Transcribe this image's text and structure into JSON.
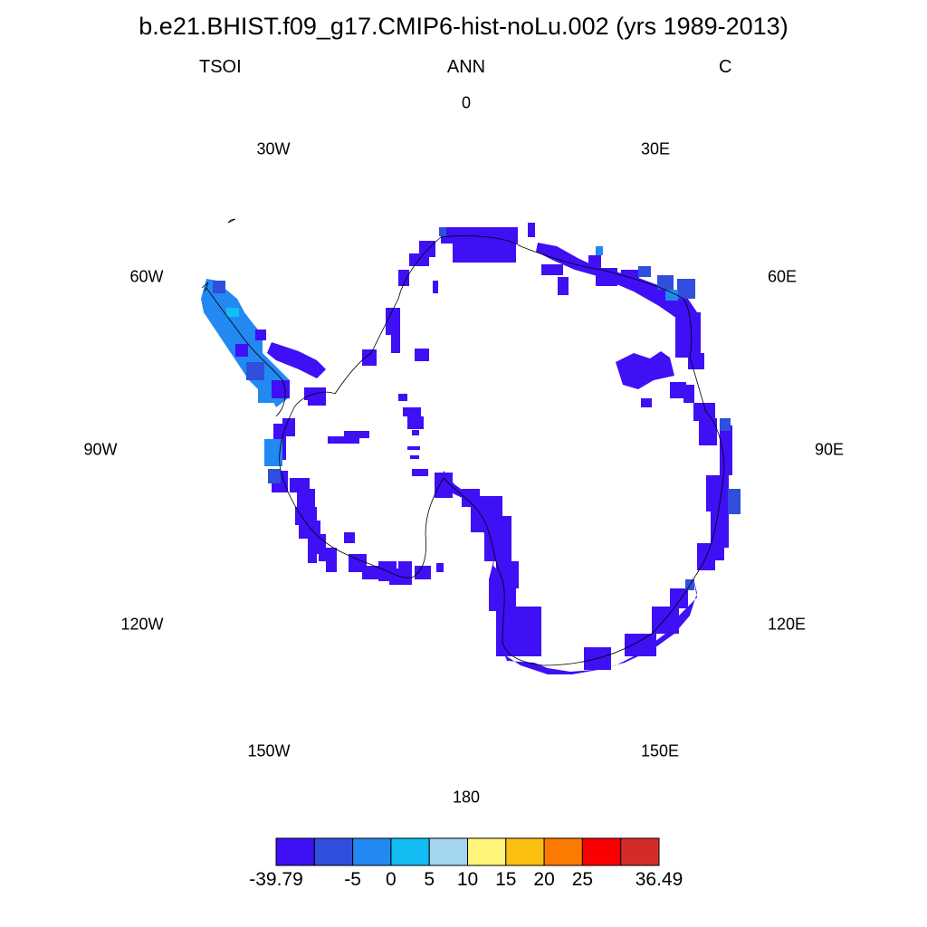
{
  "title": "b.e21.BHIST.f09_g17.CMIP6-hist-noLu.002 (yrs 1989-2013)",
  "subtitle": {
    "left": "TSOI",
    "center": "ANN",
    "right": "C"
  },
  "lon_labels": {
    "top": "0",
    "bottom": "180",
    "30w": "30W",
    "30e": "30E",
    "60w": "60W",
    "60e": "60E",
    "90w": "90W",
    "90e": "90E",
    "120w": "120W",
    "120e": "120E",
    "150w": "150W",
    "150e": "150E"
  },
  "colorbar": {
    "colors": [
      "#3f0ff5",
      "#2f4fdc",
      "#2288f2",
      "#12bdf4",
      "#a3d5f0",
      "#fff57a",
      "#fbbf12",
      "#fd7a02",
      "#fa0000",
      "#d52a2a"
    ],
    "labels": [
      "-39.79",
      "-5",
      "0",
      "5",
      "10",
      "15",
      "20",
      "25",
      "36.49"
    ]
  },
  "colors": {
    "cold": "#3f0ff5",
    "mid_blue": "#2f4fdc",
    "light_blue": "#2288f2",
    "cyan": "#12bdf4"
  }
}
